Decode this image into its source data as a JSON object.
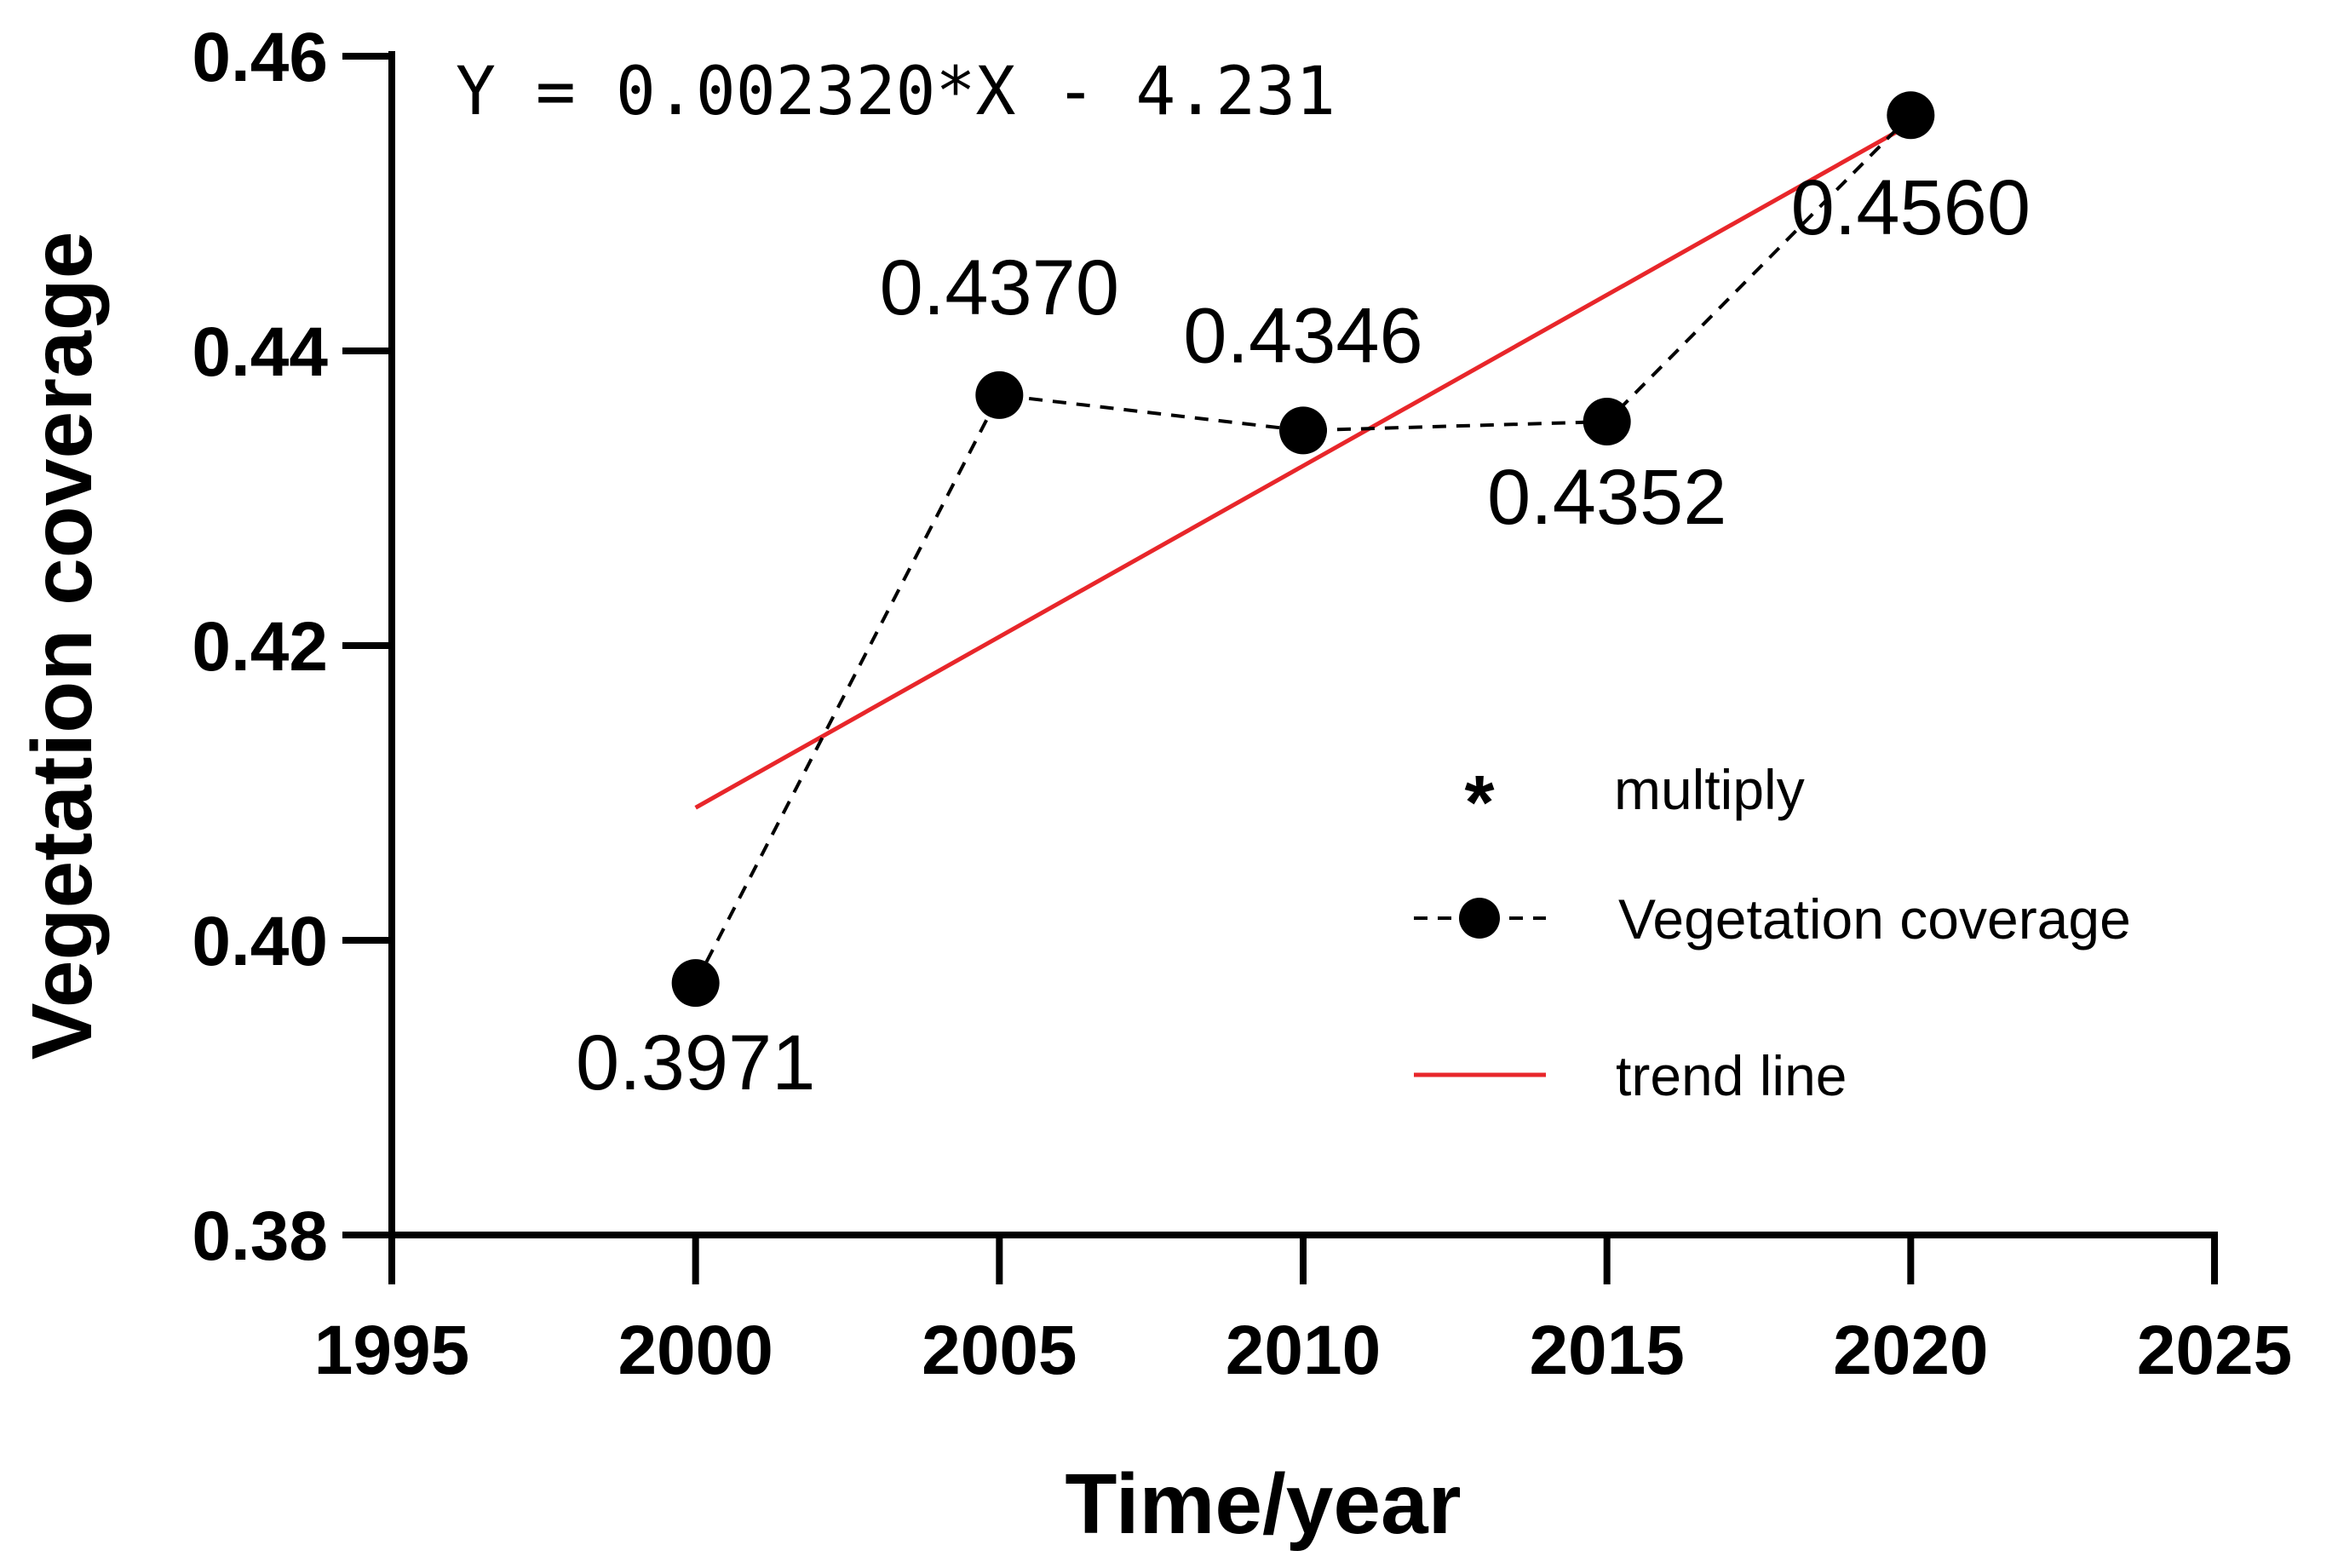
{
  "chart_data": {
    "type": "line",
    "title": "",
    "xlabel": "Time/year",
    "ylabel": "Vegetation coverage",
    "xlim": [
      1995,
      2025
    ],
    "ylim": [
      0.38,
      0.46
    ],
    "x_ticks": [
      "1995",
      "2000",
      "2005",
      "2010",
      "2015",
      "2020",
      "2025"
    ],
    "y_ticks": [
      "0.38",
      "0.40",
      "0.42",
      "0.44",
      "0.46"
    ],
    "equation": "Y = 0.002320*X - 4.231",
    "series": [
      {
        "name": "Vegetation coverage",
        "style": "dashed-with-markers",
        "color": "#000000",
        "x": [
          2000,
          2005,
          2010,
          2015,
          2020
        ],
        "values": [
          0.3971,
          0.437,
          0.4346,
          0.4352,
          0.456
        ],
        "labels": [
          "0.3971",
          "0.4370",
          "0.4346",
          "0.4352",
          "0.4560"
        ]
      },
      {
        "name": "trend line",
        "style": "solid",
        "color": "#e8262a",
        "slope": 0.00232,
        "intercept": -4.231,
        "x": [
          2000,
          2020
        ]
      }
    ],
    "legend": {
      "position": "center-right",
      "entries": [
        {
          "symbol": "*",
          "label": "multiply"
        },
        {
          "symbol": "dashed-circle",
          "label": "Vegetation coverage"
        },
        {
          "symbol": "red-line",
          "label": "trend line"
        }
      ]
    }
  }
}
